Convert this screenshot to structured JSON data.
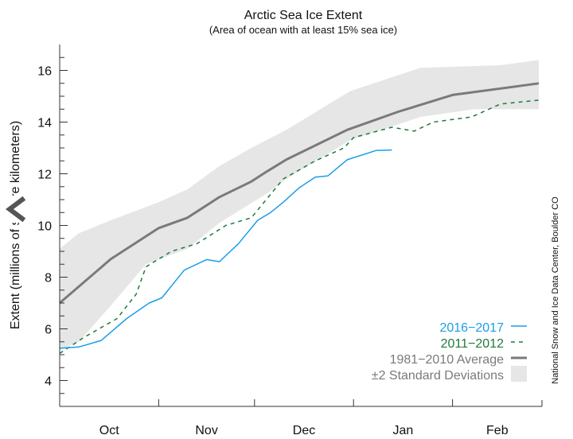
{
  "chart_data": {
    "type": "line",
    "title": "Arctic Sea Ice Extent",
    "subtitle": "(Area of ocean with at least 15% sea ice)",
    "ylabel": "Extent (millions of square kilometers)",
    "xlabel": "",
    "ylim": [
      3,
      17
    ],
    "yticks": [
      "4",
      "6",
      "8",
      "10",
      "12",
      "14",
      "16"
    ],
    "xticks": [
      "Oct",
      "Nov",
      "Dec",
      "Jan",
      "Feb"
    ],
    "xrange": [
      "Oct 1",
      "Feb 28"
    ],
    "grid": false,
    "legend_position": "bottom-right",
    "credit": "National Snow and Ice Data Center, Boulder CO",
    "band": {
      "name": "±2 Standard Deviations",
      "color": "#e6e6e6",
      "upper": [
        [
          "Oct 1",
          9.1
        ],
        [
          "Oct 7",
          9.7
        ],
        [
          "Oct 17",
          10.2
        ],
        [
          "Nov 1",
          10.9
        ],
        [
          "Nov 10",
          11.4
        ],
        [
          "Nov 20",
          12.3
        ],
        [
          "Nov 30",
          13.0
        ],
        [
          "Dec 11",
          13.7
        ],
        [
          "Dec 31",
          15.2
        ],
        [
          "Jan 22",
          16.1
        ],
        [
          "Feb 16",
          16.2
        ],
        [
          "Feb 28",
          16.4
        ]
      ],
      "lower": [
        [
          "Oct 1",
          5.2
        ],
        [
          "Oct 7",
          5.5
        ],
        [
          "Oct 17",
          6.9
        ],
        [
          "Oct 28",
          8.5
        ],
        [
          "Nov 10",
          9.1
        ],
        [
          "Nov 20",
          10.1
        ],
        [
          "Dec 5",
          11.25
        ],
        [
          "Dec 11",
          11.8
        ],
        [
          "Dec 31",
          13.3
        ],
        [
          "Jan 22",
          14.2
        ],
        [
          "Feb 8",
          14.5
        ],
        [
          "Feb 28",
          14.5
        ]
      ]
    },
    "series": [
      {
        "name": "1981−2010 Average",
        "color": "#7a7a7a",
        "style": "solid-thick",
        "points": [
          [
            "Oct 1",
            7.0
          ],
          [
            "Oct 17",
            8.7
          ],
          [
            "Nov 1",
            9.9
          ],
          [
            "Nov 10",
            10.3
          ],
          [
            "Nov 20",
            11.1
          ],
          [
            "Nov 30",
            11.7
          ],
          [
            "Dec 5",
            12.1
          ],
          [
            "Dec 11",
            12.55
          ],
          [
            "Dec 30",
            13.7
          ],
          [
            "Jan 15",
            14.4
          ],
          [
            "Feb 1",
            15.05
          ],
          [
            "Feb 16",
            15.3
          ],
          [
            "Feb 28",
            15.5
          ]
        ]
      },
      {
        "name": "2011−2012",
        "color": "#1e7a3c",
        "style": "dashed",
        "points": [
          [
            "Oct 1",
            5.05
          ],
          [
            "Oct 9",
            5.7
          ],
          [
            "Oct 19",
            6.4
          ],
          [
            "Oct 25",
            7.35
          ],
          [
            "Oct 28",
            8.4
          ],
          [
            "Nov 5",
            9.0
          ],
          [
            "Nov 13",
            9.3
          ],
          [
            "Nov 22",
            10.0
          ],
          [
            "Nov 30",
            10.3
          ],
          [
            "Dec 10",
            11.8
          ],
          [
            "Dec 20",
            12.5
          ],
          [
            "Dec 29",
            13.0
          ],
          [
            "Jan 1",
            13.4
          ],
          [
            "Jan 13",
            13.8
          ],
          [
            "Jan 20",
            13.65
          ],
          [
            "Jan 26",
            14.0
          ],
          [
            "Feb 7",
            14.2
          ],
          [
            "Feb 16",
            14.7
          ],
          [
            "Feb 28",
            14.85
          ]
        ]
      },
      {
        "name": "2016−2017",
        "color": "#1a9ee8",
        "style": "solid",
        "points": [
          [
            "Oct 1",
            5.25
          ],
          [
            "Oct 7",
            5.3
          ],
          [
            "Oct 14",
            5.55
          ],
          [
            "Oct 22",
            6.4
          ],
          [
            "Oct 29",
            7.0
          ],
          [
            "Nov 2",
            7.2
          ],
          [
            "Nov 9",
            8.27
          ],
          [
            "Nov 16",
            8.68
          ],
          [
            "Nov 20",
            8.6
          ],
          [
            "Nov 26",
            9.3
          ],
          [
            "Dec 2",
            10.2
          ],
          [
            "Dec 6",
            10.5
          ],
          [
            "Dec 10",
            10.9
          ],
          [
            "Dec 15",
            11.46
          ],
          [
            "Dec 20",
            11.87
          ],
          [
            "Dec 24",
            11.92
          ],
          [
            "Dec 30",
            12.54
          ],
          [
            "Jan 8",
            12.9
          ],
          [
            "Jan 13",
            12.92
          ]
        ]
      }
    ],
    "legend": [
      {
        "label": "2016−2017",
        "color": "#1a9ee8"
      },
      {
        "label": "2011−2012",
        "color": "#1e7a3c"
      },
      {
        "label": "1981−2010 Average",
        "color": "#7a7a7a"
      },
      {
        "label": "±2 Standard Deviations",
        "color": "#7a7a7a"
      }
    ]
  },
  "overlay": {
    "icon": "chevron-left-icon",
    "color": "#555555"
  }
}
